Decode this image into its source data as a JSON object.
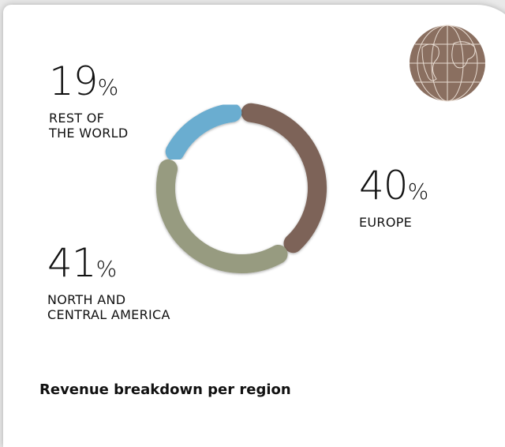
{
  "chart_data": {
    "type": "donut",
    "title": "Revenue breakdown per region",
    "categories": [
      "EUROPE",
      "NORTH AND\nCENTRAL AMERICA",
      "REST OF\nTHE WORLD"
    ],
    "values": [
      40,
      41,
      19
    ],
    "unit": "%",
    "colors": [
      "#7d6458",
      "#979b80",
      "#6badd0"
    ]
  }
}
